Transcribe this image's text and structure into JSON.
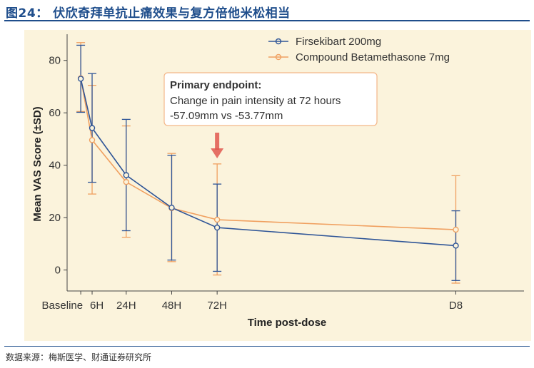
{
  "figure_title": "图24： 伏欣奇拜单抗止痛效果与复方倍他米松相当",
  "source": "数据来源：梅斯医学、财通证券研究所",
  "colors": {
    "brand": "#1f4e8c",
    "plot_bg": "#fbf3dc",
    "series_1": "#2f5597",
    "series_2": "#f0a060",
    "arrow": "#e0574f"
  },
  "chart_data": {
    "type": "line",
    "title": "",
    "xlabel": "Time post-dose",
    "ylabel": "Mean VAS Score (±SD)",
    "ylim": [
      -8,
      90
    ],
    "yticks": [
      0,
      20,
      40,
      60,
      80
    ],
    "xlim": [
      -1.2,
      39
    ],
    "categories": [
      "Baseline",
      "6H",
      "24H",
      "48H",
      "72H",
      "D8"
    ],
    "x": [
      0,
      1,
      4,
      8,
      12,
      33
    ],
    "series": [
      {
        "name": "Firsekibart 200mg",
        "values": [
          73.0,
          54.2,
          36.2,
          23.8,
          16.2,
          9.3
        ],
        "err_low": [
          60.2,
          33.5,
          15.0,
          3.8,
          -0.5,
          -4.0
        ],
        "err_high": [
          85.8,
          75.0,
          57.5,
          43.8,
          32.8,
          22.6
        ]
      },
      {
        "name": "Compound Betamethasone 7mg",
        "values": [
          73.2,
          49.6,
          33.6,
          23.6,
          19.2,
          15.4
        ],
        "err_low": [
          60.5,
          29.0,
          12.5,
          3.2,
          -1.9,
          -5.0
        ],
        "err_high": [
          86.8,
          70.5,
          55.0,
          44.5,
          40.5,
          36.0
        ]
      }
    ],
    "legend_position": "top-right",
    "annotation": {
      "heading": "Primary endpoint:",
      "line1": "Change in pain intensity at 72 hours",
      "line2": "-57.09mm vs -53.77mm",
      "points_to": "72H"
    }
  }
}
